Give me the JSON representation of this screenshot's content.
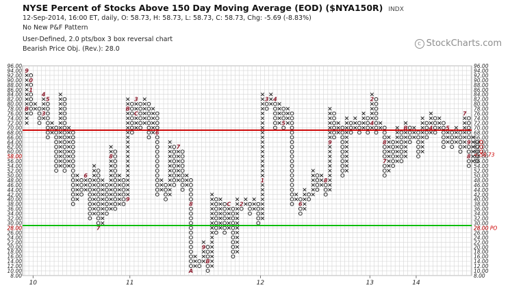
{
  "header": {
    "title": "NYSE Percent of Stocks Above 150 Day Moving Average (EOD) ($NYA150R)",
    "ticker_tag": "INDX",
    "lines": [
      "12-Sep-2014, 16:00 ET, daily, O: 58.73, H: 58.73, L: 58.73, C: 58.73, Chg: -5.69 (-8.83%)",
      "No New P&F Pattern",
      "User-Defined, 2.0 pts/box 3 box reversal chart",
      "Bearish Price Obj. (Rev.): 28.0"
    ]
  },
  "watermark": "StockCharts.com",
  "colors": {
    "x_mark": "#111111",
    "o_mark": "#111111",
    "month_marker": "#8b1a2b",
    "resistance_line": "#cc0000",
    "support_line": "#00bb00",
    "last_price_label": "#cc0000",
    "grid": "#d4d4d4"
  },
  "chart_data": {
    "type": "point-and-figure",
    "box_size": 2.0,
    "reversal_boxes": 3,
    "ylim": [
      8,
      96
    ],
    "y_ticks": [
      "8.00",
      "10.00",
      "12.00",
      "14.00",
      "16.00",
      "18.00",
      "20.00",
      "22.00",
      "24.00",
      "26.00",
      "28.00",
      "30.00",
      "32.00",
      "34.00",
      "36.00",
      "38.00",
      "40.00",
      "42.00",
      "44.00",
      "46.00",
      "48.00",
      "50.00",
      "52.00",
      "54.00",
      "56.00",
      "58.00",
      "60.00",
      "62.00",
      "64.00",
      "66.00",
      "68.00",
      "70.00",
      "72.00",
      "74.00",
      "76.00",
      "78.00",
      "80.00",
      "82.00",
      "84.00",
      "86.00",
      "88.00",
      "90.00",
      "92.00",
      "94.00",
      "96.00"
    ],
    "x_labels": [
      {
        "label": "10",
        "column": 2
      },
      {
        "label": "11",
        "column": 25
      },
      {
        "label": "12",
        "column": 56
      },
      {
        "label": "13",
        "column": 82
      },
      {
        "label": "14",
        "column": 93
      }
    ],
    "columns": [
      {
        "t": "X",
        "lo": 72,
        "hi": 94
      },
      {
        "t": "O",
        "lo": 76,
        "hi": 92
      },
      {
        "t": "X",
        "lo": 78,
        "hi": 80
      },
      {
        "t": "O",
        "lo": 72,
        "hi": 78
      },
      {
        "t": "X",
        "lo": 74,
        "hi": 84
      },
      {
        "t": "O",
        "lo": 66,
        "hi": 82
      },
      {
        "t": "X",
        "lo": 68,
        "hi": 72
      },
      {
        "t": "O",
        "lo": 52,
        "hi": 70
      },
      {
        "t": "X",
        "lo": 54,
        "hi": 84
      },
      {
        "t": "O",
        "lo": 52,
        "hi": 82
      },
      {
        "t": "X",
        "lo": 54,
        "hi": 70
      },
      {
        "t": "O",
        "lo": 38,
        "hi": 68
      },
      {
        "t": "X",
        "lo": 40,
        "hi": 50
      },
      {
        "t": "O",
        "lo": 42,
        "hi": 48
      },
      {
        "t": "X",
        "lo": 44,
        "hi": 50
      },
      {
        "t": "O",
        "lo": 32,
        "hi": 48
      },
      {
        "t": "X",
        "lo": 34,
        "hi": 54
      },
      {
        "t": "O",
        "lo": 28,
        "hi": 52
      },
      {
        "t": "X",
        "lo": 30,
        "hi": 48
      },
      {
        "t": "O",
        "lo": 34,
        "hi": 46
      },
      {
        "t": "X",
        "lo": 36,
        "hi": 62
      },
      {
        "t": "O",
        "lo": 36,
        "hi": 60
      },
      {
        "t": "X",
        "lo": 38,
        "hi": 50
      },
      {
        "t": "O",
        "lo": 38,
        "hi": 48
      },
      {
        "t": "X",
        "lo": 40,
        "hi": 82
      },
      {
        "t": "O",
        "lo": 68,
        "hi": 80
      },
      {
        "t": "X",
        "lo": 70,
        "hi": 82
      },
      {
        "t": "O",
        "lo": 70,
        "hi": 80
      },
      {
        "t": "X",
        "lo": 72,
        "hi": 82
      },
      {
        "t": "O",
        "lo": 66,
        "hi": 80
      },
      {
        "t": "X",
        "lo": 68,
        "hi": 78
      },
      {
        "t": "O",
        "lo": 42,
        "hi": 76
      },
      {
        "t": "X",
        "lo": 44,
        "hi": 48
      },
      {
        "t": "O",
        "lo": 40,
        "hi": 46
      },
      {
        "t": "X",
        "lo": 42,
        "hi": 64
      },
      {
        "t": "O",
        "lo": 46,
        "hi": 62
      },
      {
        "t": "X",
        "lo": 48,
        "hi": 62
      },
      {
        "t": "O",
        "lo": 44,
        "hi": 60
      },
      {
        "t": "X",
        "lo": 46,
        "hi": 50
      },
      {
        "t": "O",
        "lo": 10,
        "hi": 48
      },
      {
        "t": "X",
        "lo": 12,
        "hi": 16
      },
      {
        "t": "O",
        "lo": 12,
        "hi": 14
      },
      {
        "t": "X",
        "lo": 14,
        "hi": 22
      },
      {
        "t": "O",
        "lo": 10,
        "hi": 20
      },
      {
        "t": "X",
        "lo": 12,
        "hi": 42
      },
      {
        "t": "O",
        "lo": 26,
        "hi": 40
      },
      {
        "t": "X",
        "lo": 28,
        "hi": 40
      },
      {
        "t": "O",
        "lo": 26,
        "hi": 38
      },
      {
        "t": "X",
        "lo": 28,
        "hi": 38
      },
      {
        "t": "O",
        "lo": 16,
        "hi": 36
      },
      {
        "t": "X",
        "lo": 18,
        "hi": 40
      },
      {
        "t": "O",
        "lo": 36,
        "hi": 38
      },
      {
        "t": "X",
        "lo": 38,
        "hi": 40
      },
      {
        "t": "O",
        "lo": 34,
        "hi": 38
      },
      {
        "t": "X",
        "lo": 36,
        "hi": 40
      },
      {
        "t": "O",
        "lo": 30,
        "hi": 38
      },
      {
        "t": "X",
        "lo": 32,
        "hi": 84
      },
      {
        "t": "O",
        "lo": 78,
        "hi": 82
      },
      {
        "t": "X",
        "lo": 80,
        "hi": 84
      },
      {
        "t": "O",
        "lo": 70,
        "hi": 82
      },
      {
        "t": "X",
        "lo": 72,
        "hi": 80
      },
      {
        "t": "O",
        "lo": 70,
        "hi": 78
      },
      {
        "t": "X",
        "lo": 72,
        "hi": 78
      },
      {
        "t": "O",
        "lo": 38,
        "hi": 76
      },
      {
        "t": "X",
        "lo": 40,
        "hi": 42
      },
      {
        "t": "O",
        "lo": 34,
        "hi": 40
      },
      {
        "t": "X",
        "lo": 36,
        "hi": 44
      },
      {
        "t": "O",
        "lo": 40,
        "hi": 42
      },
      {
        "t": "X",
        "lo": 42,
        "hi": 52
      },
      {
        "t": "O",
        "lo": 44,
        "hi": 50
      },
      {
        "t": "X",
        "lo": 46,
        "hi": 50
      },
      {
        "t": "O",
        "lo": 42,
        "hi": 48
      },
      {
        "t": "X",
        "lo": 44,
        "hi": 78
      },
      {
        "t": "O",
        "lo": 66,
        "hi": 76
      },
      {
        "t": "X",
        "lo": 68,
        "hi": 72
      },
      {
        "t": "O",
        "lo": 50,
        "hi": 70
      },
      {
        "t": "X",
        "lo": 52,
        "hi": 74
      },
      {
        "t": "O",
        "lo": 68,
        "hi": 72
      },
      {
        "t": "X",
        "lo": 70,
        "hi": 74
      },
      {
        "t": "O",
        "lo": 68,
        "hi": 72
      },
      {
        "t": "X",
        "lo": 70,
        "hi": 76
      },
      {
        "t": "O",
        "lo": 68,
        "hi": 74
      },
      {
        "t": "X",
        "lo": 70,
        "hi": 84
      },
      {
        "t": "O",
        "lo": 68,
        "hi": 82
      },
      {
        "t": "X",
        "lo": 70,
        "hi": 72
      },
      {
        "t": "O",
        "lo": 50,
        "hi": 70
      },
      {
        "t": "X",
        "lo": 52,
        "hi": 66
      },
      {
        "t": "O",
        "lo": 54,
        "hi": 64
      },
      {
        "t": "X",
        "lo": 56,
        "hi": 70
      },
      {
        "t": "O",
        "lo": 56,
        "hi": 68
      },
      {
        "t": "X",
        "lo": 58,
        "hi": 72
      },
      {
        "t": "O",
        "lo": 64,
        "hi": 70
      },
      {
        "t": "X",
        "lo": 66,
        "hi": 70
      },
      {
        "t": "O",
        "lo": 58,
        "hi": 68
      },
      {
        "t": "X",
        "lo": 60,
        "hi": 74
      },
      {
        "t": "O",
        "lo": 66,
        "hi": 72
      },
      {
        "t": "X",
        "lo": 68,
        "hi": 76
      },
      {
        "t": "O",
        "lo": 68,
        "hi": 74
      },
      {
        "t": "X",
        "lo": 70,
        "hi": 74
      },
      {
        "t": "O",
        "lo": 62,
        "hi": 72
      },
      {
        "t": "X",
        "lo": 64,
        "hi": 70
      },
      {
        "t": "O",
        "lo": 62,
        "hi": 68
      },
      {
        "t": "X",
        "lo": 64,
        "hi": 70
      },
      {
        "t": "O",
        "lo": 60,
        "hi": 68
      },
      {
        "t": "X",
        "lo": 62,
        "hi": 76
      },
      {
        "t": "O",
        "lo": 54,
        "hi": 74
      },
      {
        "t": "X",
        "lo": 56,
        "hi": 66
      },
      {
        "t": "O",
        "lo": 56,
        "hi": 64
      }
    ],
    "month_markers": [
      {
        "c": 0,
        "v": 94,
        "m": "9"
      },
      {
        "c": 1,
        "v": 90,
        "m": "0"
      },
      {
        "c": 1,
        "v": 86,
        "m": "1"
      },
      {
        "c": 0,
        "v": 78,
        "m": "B"
      },
      {
        "c": 3,
        "v": 80,
        "m": "C"
      },
      {
        "c": 4,
        "v": 84,
        "m": "4"
      },
      {
        "c": 5,
        "v": 82,
        "m": "5"
      },
      {
        "c": 4,
        "v": 76,
        "m": "3"
      },
      {
        "c": 2,
        "v": 72,
        "m": "2"
      },
      {
        "c": 14,
        "v": 50,
        "m": "6"
      },
      {
        "c": 17,
        "v": 28,
        "m": "7"
      },
      {
        "c": 20,
        "v": 58,
        "m": "8"
      },
      {
        "c": 24,
        "v": 40,
        "m": "9"
      },
      {
        "c": 24,
        "v": 84,
        "m": "1"
      },
      {
        "c": 24,
        "v": 78,
        "m": "B"
      },
      {
        "c": 26,
        "v": 82,
        "m": "3"
      },
      {
        "c": 27,
        "v": 82,
        "m": "4"
      },
      {
        "c": 26,
        "v": 76,
        "m": "C"
      },
      {
        "c": 31,
        "v": 78,
        "m": "5"
      },
      {
        "c": 31,
        "v": 68,
        "m": "6"
      },
      {
        "c": 36,
        "v": 62,
        "m": "7"
      },
      {
        "c": 39,
        "v": 38,
        "m": "8"
      },
      {
        "c": 39,
        "v": 10,
        "m": "A"
      },
      {
        "c": 42,
        "v": 20,
        "m": "9"
      },
      {
        "c": 43,
        "v": 14,
        "m": "B"
      },
      {
        "c": 48,
        "v": 38,
        "m": "C"
      },
      {
        "c": 51,
        "v": 38,
        "m": "2"
      },
      {
        "c": 56,
        "v": 48,
        "m": "1"
      },
      {
        "c": 57,
        "v": 82,
        "m": "3"
      },
      {
        "c": 59,
        "v": 82,
        "m": "4"
      },
      {
        "c": 61,
        "v": 72,
        "m": "5"
      },
      {
        "c": 65,
        "v": 38,
        "m": "6"
      },
      {
        "c": 67,
        "v": 44,
        "m": "7"
      },
      {
        "c": 71,
        "v": 48,
        "m": "8"
      },
      {
        "c": 72,
        "v": 64,
        "m": "9"
      },
      {
        "c": 74,
        "v": 64,
        "m": "B"
      },
      {
        "c": 74,
        "v": 50,
        "m": "A"
      },
      {
        "c": 79,
        "v": 78,
        "m": "C"
      },
      {
        "c": 82,
        "v": 82,
        "m": "2"
      },
      {
        "c": 82,
        "v": 72,
        "m": "4"
      },
      {
        "c": 84,
        "v": 68,
        "m": "6"
      },
      {
        "c": 85,
        "v": 64,
        "m": "8"
      },
      {
        "c": 85,
        "v": 56,
        "m": "7"
      },
      {
        "c": 90,
        "v": 70,
        "m": "B"
      },
      {
        "c": 93,
        "v": 72,
        "m": "1"
      },
      {
        "c": 95,
        "v": 74,
        "m": "3"
      },
      {
        "c": 96,
        "v": 70,
        "m": "4"
      },
      {
        "c": 100,
        "v": 70,
        "m": "5"
      },
      {
        "c": 104,
        "v": 76,
        "m": "7"
      },
      {
        "c": 105,
        "v": 64,
        "m": "9"
      },
      {
        "c": 105,
        "v": 58,
        "m": "8"
      }
    ],
    "resistance_level": 69,
    "support_level": 29,
    "last_price_label": "58.73",
    "last_price_value": 58.73,
    "support_label": "28.00",
    "support_value": 28,
    "support_tag": "PO",
    "left_price_label": "58.00"
  }
}
